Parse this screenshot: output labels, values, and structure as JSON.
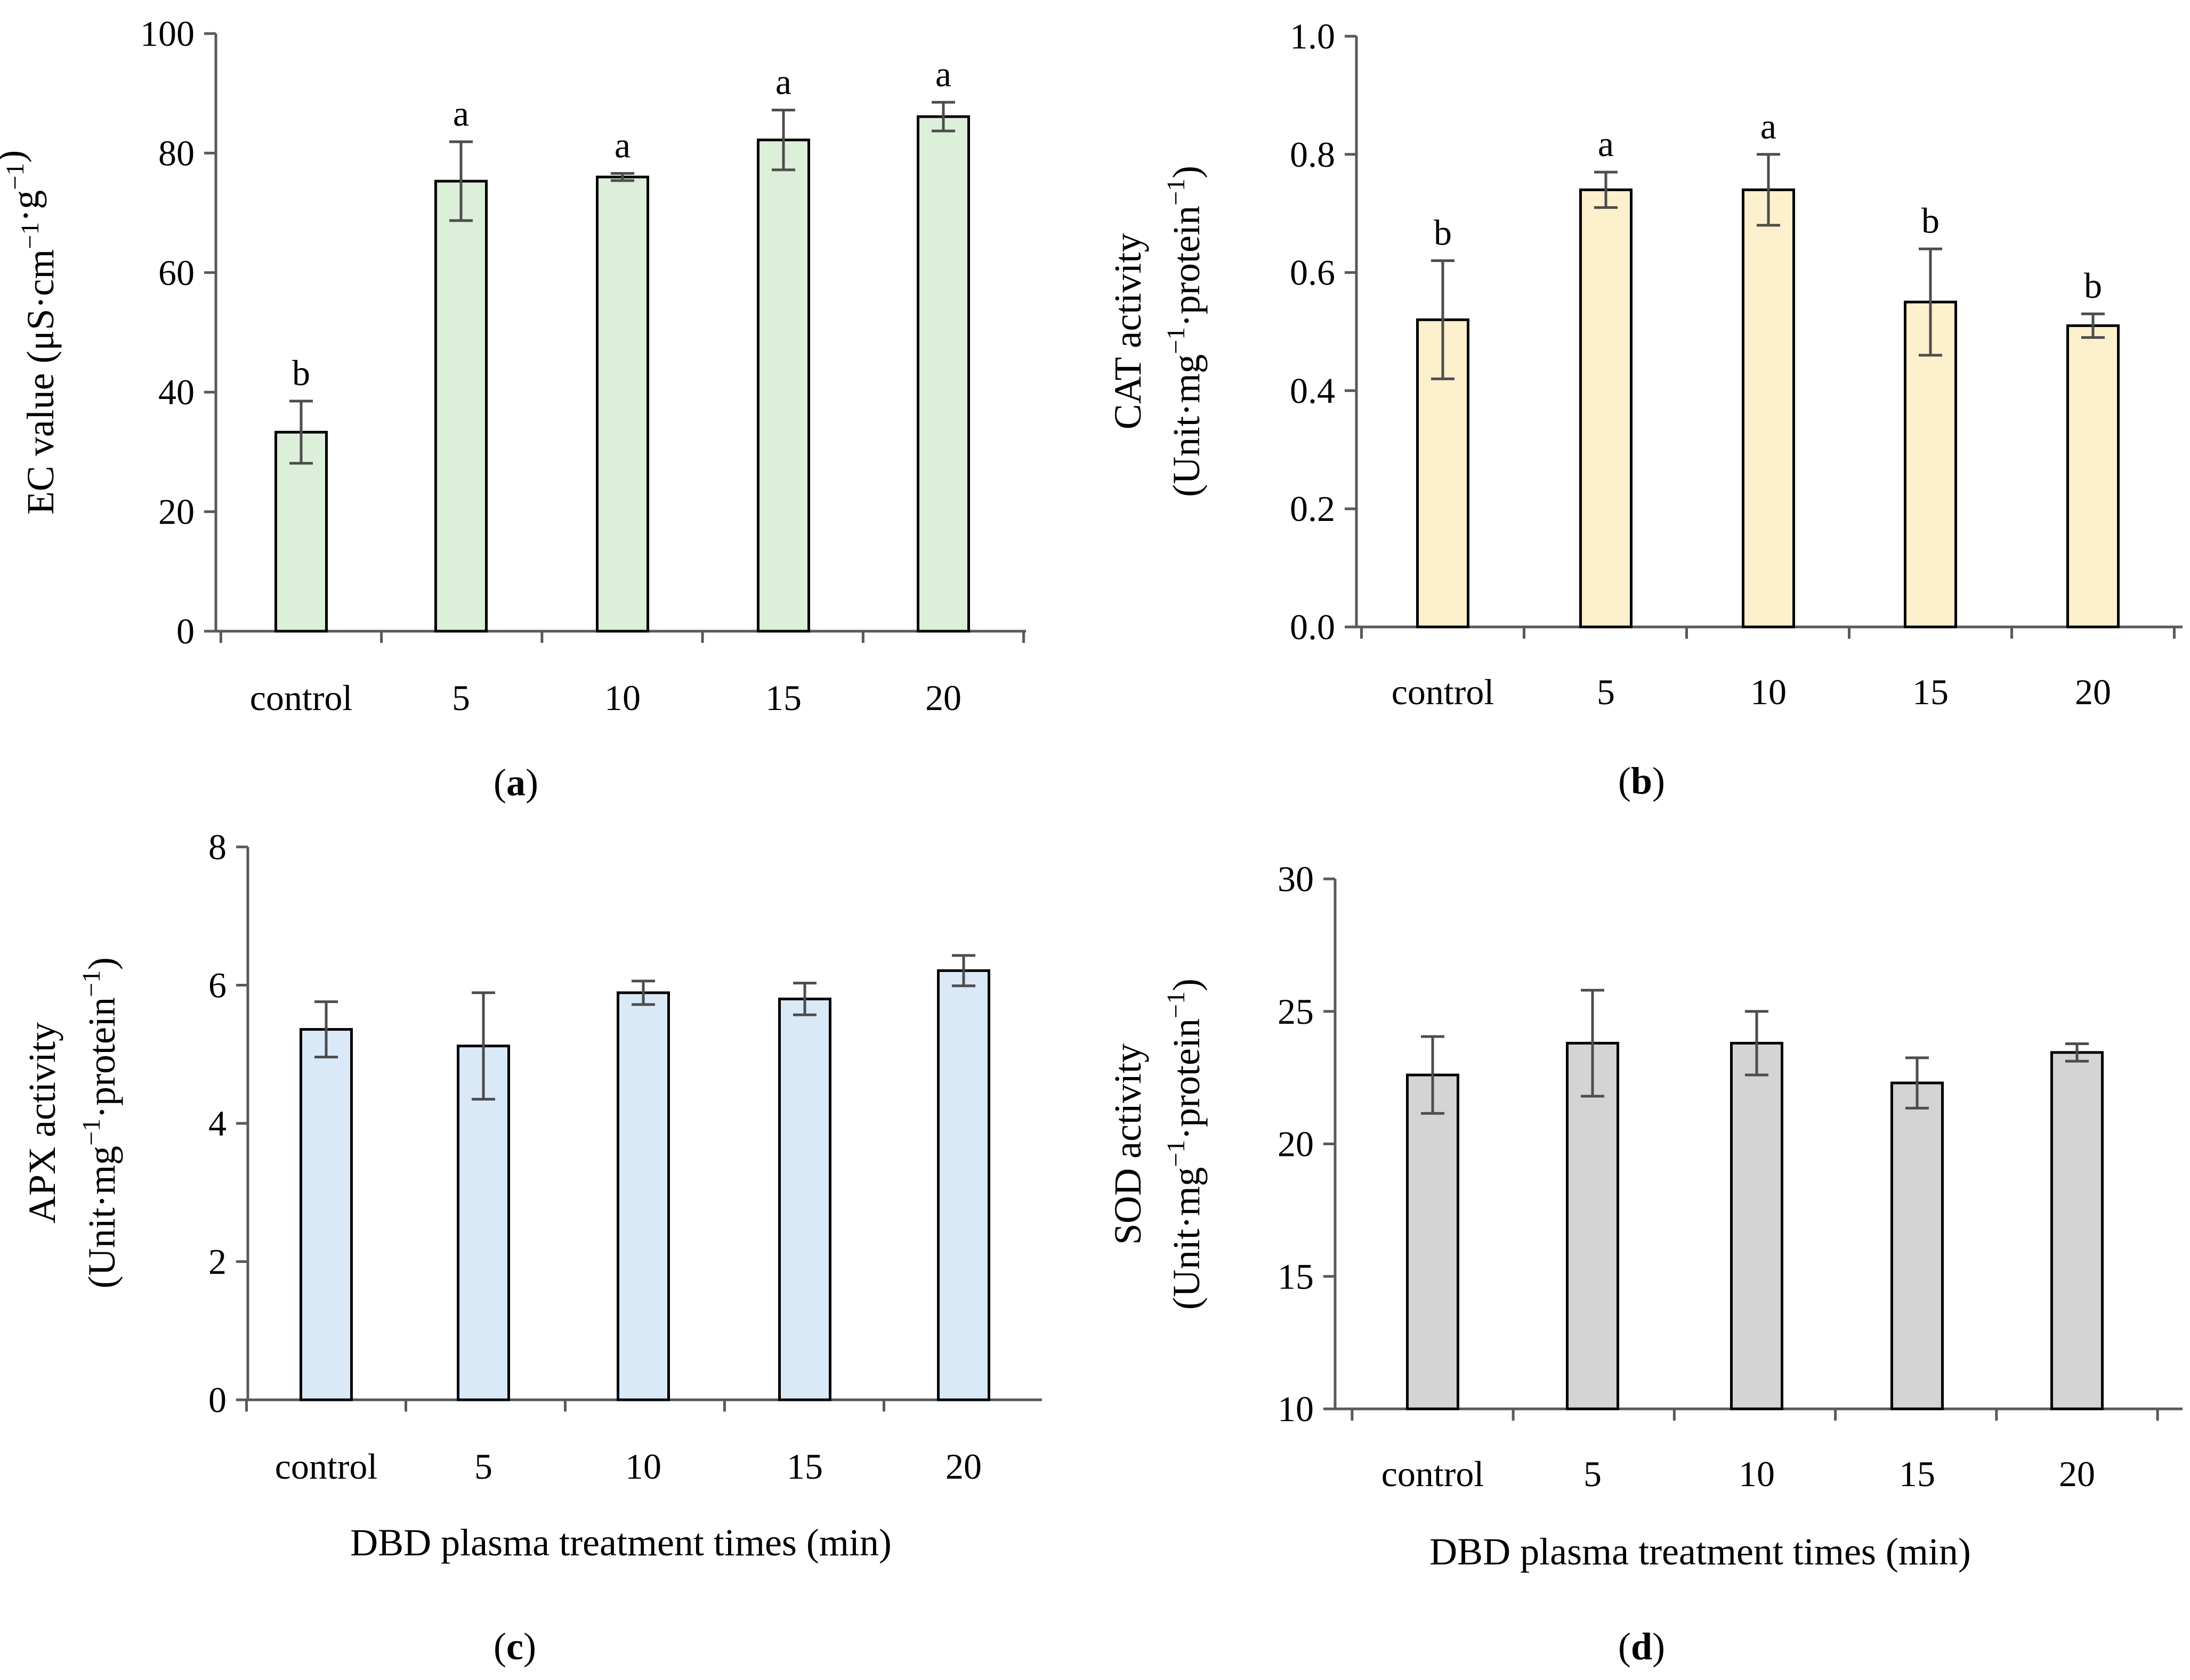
{
  "chart_data": [
    {
      "id": "a",
      "type": "bar",
      "panel_label": "a",
      "ylabel_lines": [
        "EC value (μS·cm",
        "−1",
        "·g",
        "−1",
        ")"
      ],
      "xlabel": "",
      "categories": [
        "control",
        "5",
        "10",
        "15",
        "20"
      ],
      "values": [
        33.3,
        75.3,
        76.0,
        82.2,
        86.1
      ],
      "errors": [
        5.2,
        6.6,
        0.6,
        5.0,
        2.4
      ],
      "significance": [
        "b",
        "a",
        "a",
        "a",
        "a"
      ],
      "ylim": [
        0,
        100
      ],
      "yticks": [
        "0",
        "20",
        "40",
        "60",
        "80",
        "100"
      ],
      "bar_color": "#dcefd8"
    },
    {
      "id": "b",
      "type": "bar",
      "panel_label": "b",
      "ylabel_lines": [
        "CAT activity",
        "(Unit·mg",
        "−1",
        "·protein",
        "−1",
        ")"
      ],
      "xlabel": "",
      "categories": [
        "control",
        "5",
        "10",
        "15",
        "20"
      ],
      "values": [
        0.52,
        0.74,
        0.74,
        0.55,
        0.51
      ],
      "errors": [
        0.1,
        0.03,
        0.06,
        0.09,
        0.02
      ],
      "significance": [
        "b",
        "a",
        "a",
        "b",
        "b"
      ],
      "ylim": [
        0,
        1.0
      ],
      "yticks": [
        "0.0",
        "0.2",
        "0.4",
        "0.6",
        "0.8",
        "1.0"
      ],
      "bar_color": "#fdf0cc"
    },
    {
      "id": "c",
      "type": "bar",
      "panel_label": "c",
      "ylabel_lines": [
        "APX activity",
        "(Unit·mg",
        "−1",
        "·protein",
        "−1",
        ")"
      ],
      "xlabel": "DBD plasma treatment times (min)",
      "categories": [
        "control",
        "5",
        "10",
        "15",
        "20"
      ],
      "values": [
        5.36,
        5.12,
        5.89,
        5.8,
        6.21
      ],
      "errors": [
        0.4,
        0.77,
        0.17,
        0.23,
        0.22
      ],
      "significance": [],
      "ylim": [
        0,
        8
      ],
      "yticks": [
        "0",
        "2",
        "4",
        "6",
        "8"
      ],
      "bar_color": "#d9e9f7"
    },
    {
      "id": "d",
      "type": "bar",
      "panel_label": "d",
      "ylabel_lines": [
        "SOD activity",
        "(Unit·mg",
        "−1",
        "·protein",
        "−1",
        ")"
      ],
      "xlabel": "DBD plasma treatment times (min)",
      "categories": [
        "control",
        "5",
        "10",
        "15",
        "20"
      ],
      "values": [
        22.6,
        23.8,
        23.8,
        22.3,
        23.45
      ],
      "errors": [
        1.45,
        2.0,
        1.2,
        0.95,
        0.33
      ],
      "significance": [],
      "ylim": [
        10,
        30
      ],
      "yticks": [
        "10",
        "15",
        "20",
        "25",
        "30"
      ],
      "bar_color": "#d4d4d4"
    }
  ]
}
